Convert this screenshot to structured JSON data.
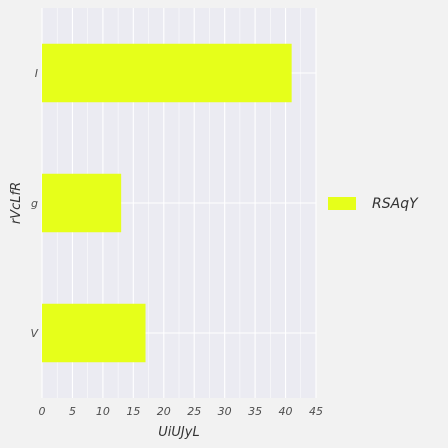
{
  "chart_data": {
    "type": "bar",
    "orientation": "horizontal",
    "categories": [
      "V",
      "g",
      "I"
    ],
    "series": [
      {
        "name": "RSAqY",
        "values": [
          17,
          13,
          41
        ],
        "color": "#e6ff1a"
      }
    ],
    "xlabel": "UiUJyL",
    "ylabel": "rVcLfR",
    "xlim": [
      0,
      45
    ],
    "xticks": [
      0,
      5,
      10,
      15,
      20,
      25,
      30,
      35,
      40,
      45
    ],
    "grid": true,
    "legend_position": "right",
    "panel_background": "#ebebf2",
    "page_background": "#f2f2f2"
  }
}
